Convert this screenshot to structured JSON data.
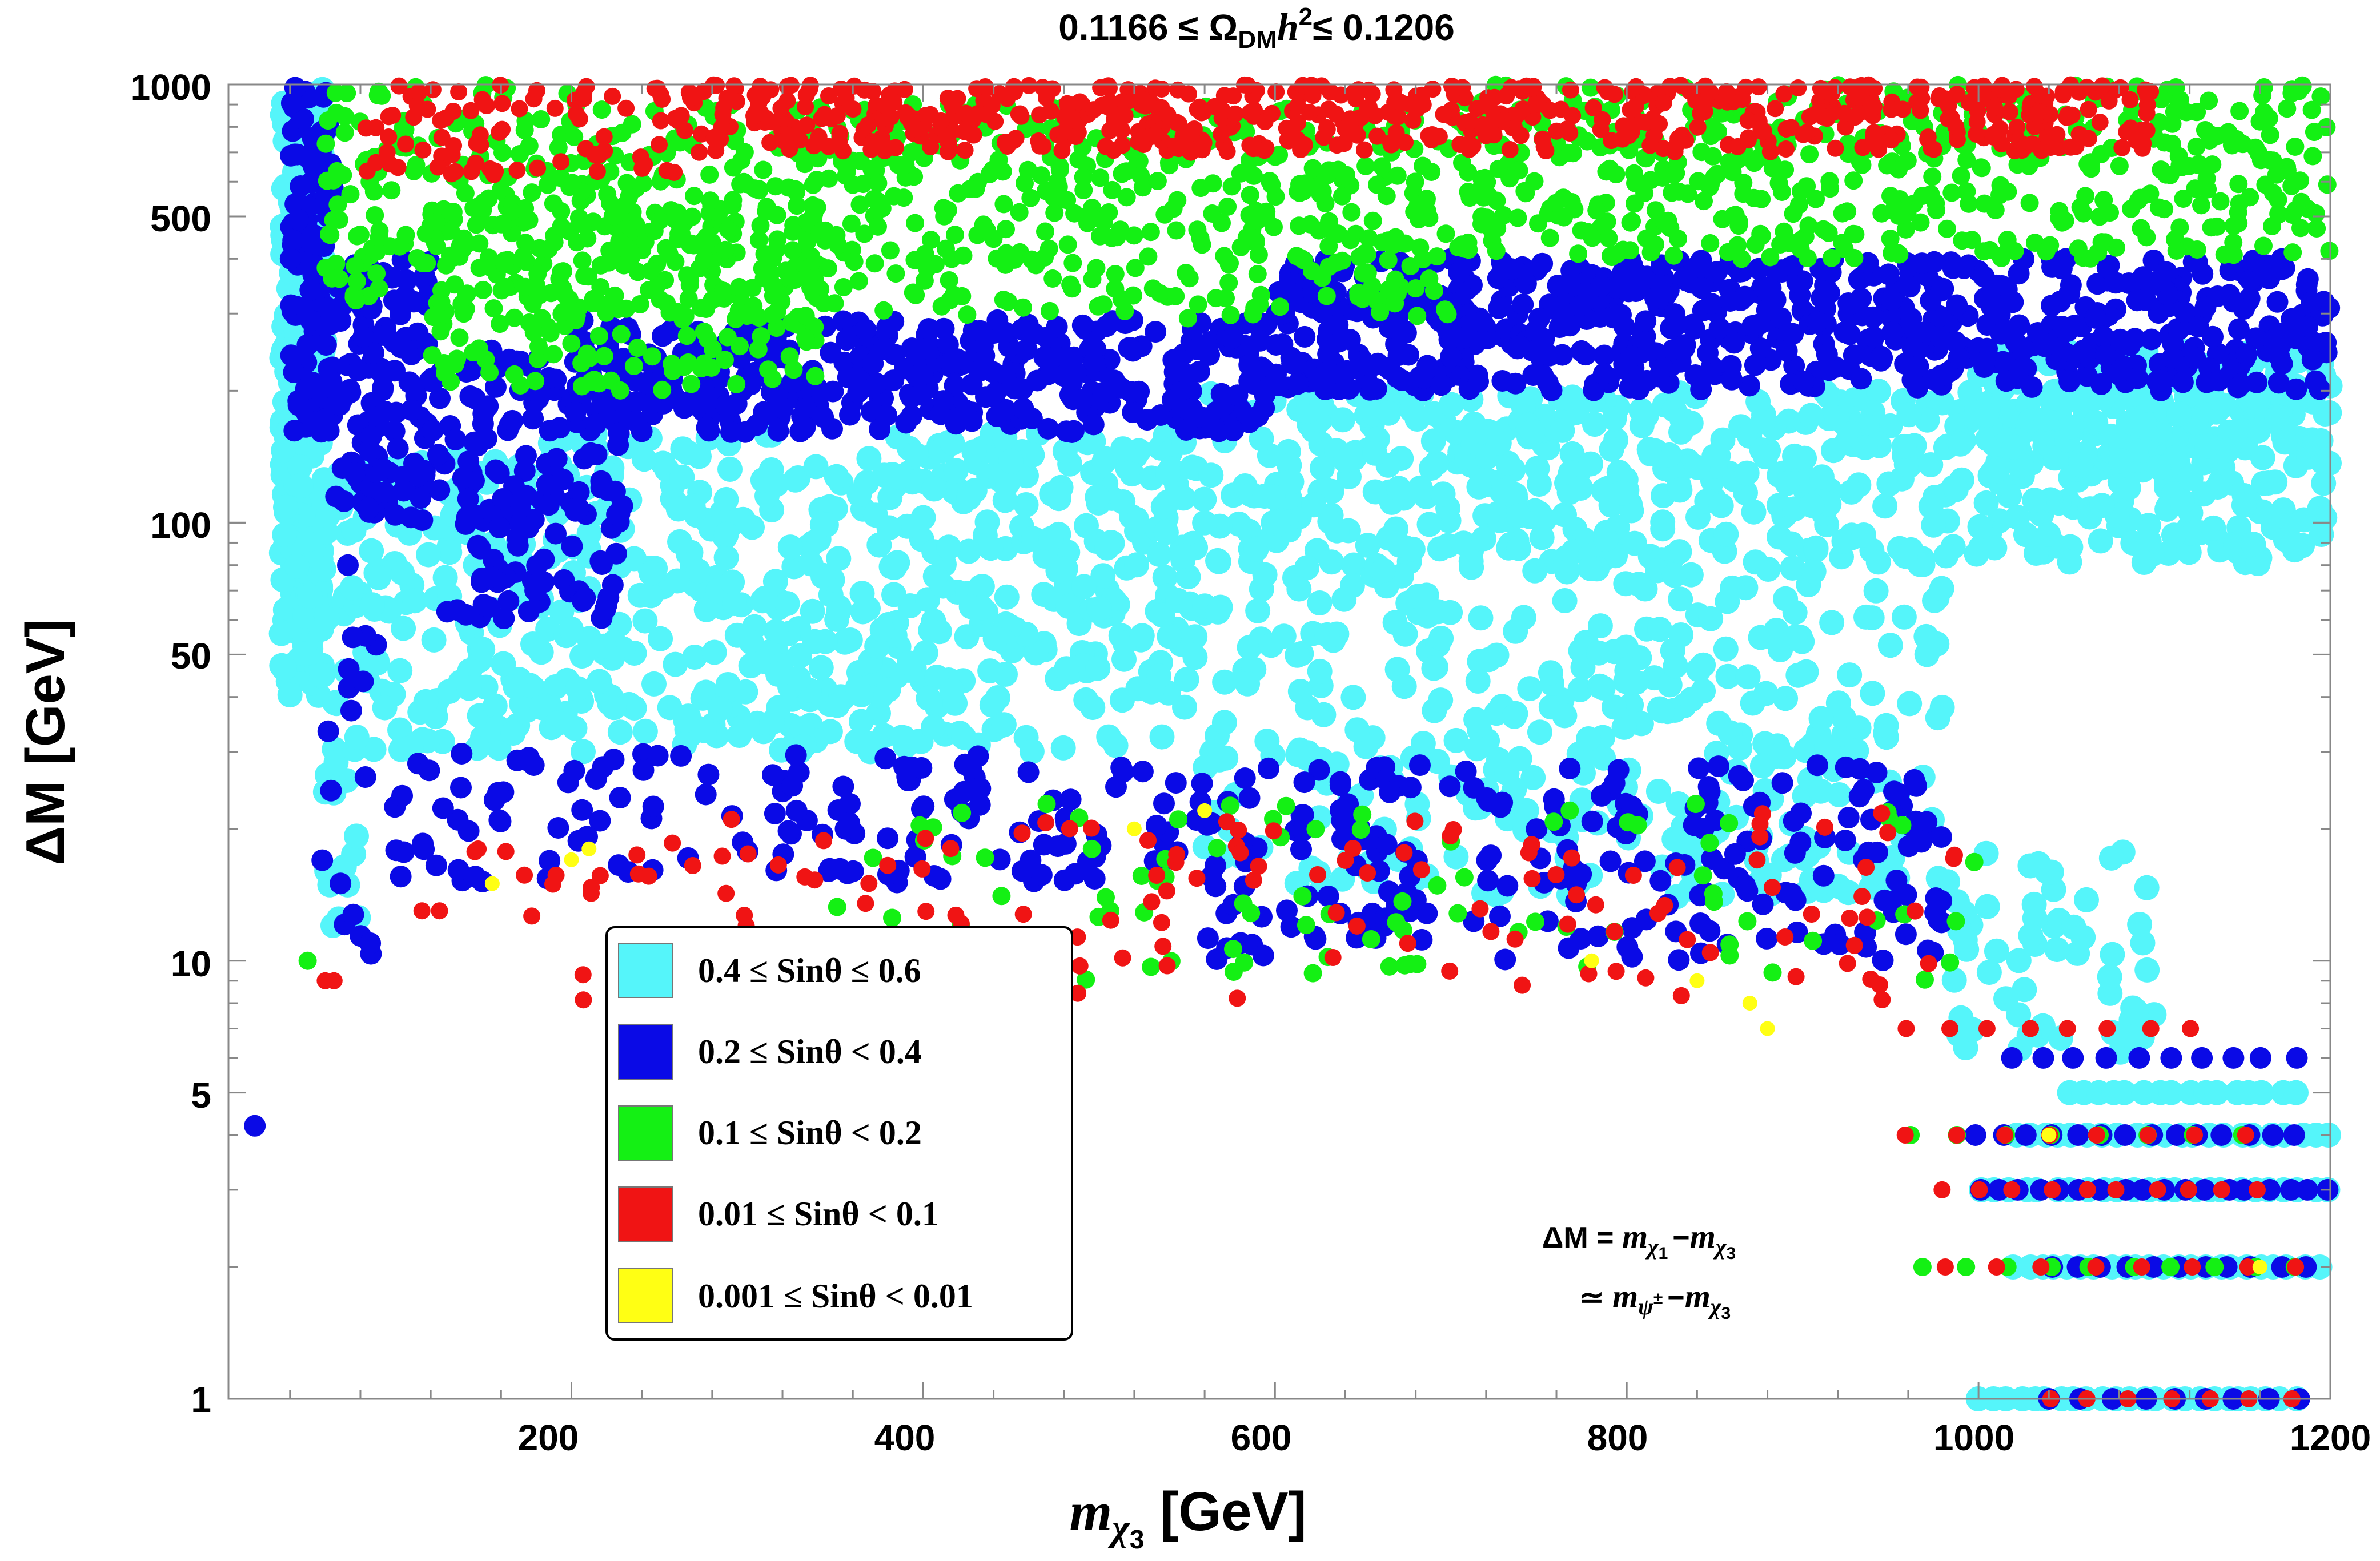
{
  "chart_data": {
    "type": "scatter",
    "title": {
      "prefix": "0.1166 ≤ Ω",
      "sub": "DM",
      "h": "h",
      "sup": "2",
      "suffix": "≤ 0.1206"
    },
    "xlabel": {
      "m": "m",
      "sub": "χ",
      "subsub": "3",
      "unit": "[GeV]"
    },
    "ylabel": "ΔM [GeV]",
    "xlim": [
      5,
      1200
    ],
    "ylim": [
      1,
      1000
    ],
    "yscale": "log",
    "x_ticks": [
      "200",
      "400",
      "600",
      "800",
      "1000",
      "1200"
    ],
    "y_ticks": [
      "1",
      "5",
      "10",
      "50",
      "100",
      "500",
      "1000"
    ],
    "legend": {
      "position": "lower-left",
      "entries": [
        {
          "label": "0.4 ≤ Sinθ ≤ 0.6",
          "color": "#55F5FA"
        },
        {
          "label": "0.2 ≤ Sinθ < 0.4",
          "color": "#0A0AE6"
        },
        {
          "label": "0.1 ≤ Sinθ < 0.2",
          "color": "#14F014"
        },
        {
          "label": "0.01 ≤ Sinθ < 0.1",
          "color": "#F01414"
        },
        {
          "label": "0.001 ≤ Sinθ < 0.01",
          "color": "#FFFF14"
        }
      ]
    },
    "annotation": {
      "line1": {
        "lhs": "ΔM = ",
        "m1": "m",
        "s1": "χ",
        "ss1": "1",
        "minus": "−",
        "m2": "m",
        "s2": "χ",
        "ss2": "3"
      },
      "line2": {
        "lhs": "≃ ",
        "m1": "m",
        "s1": "ψ",
        "ss1": "±",
        "minus": "−",
        "m2": "m",
        "s2": "χ",
        "ss2": "3"
      }
    },
    "series": [
      {
        "name": "0.4 ≤ Sinθ ≤ 0.6",
        "color": "#55F5FA",
        "regions": [
          {
            "x": [
              35,
              60
            ],
            "dm": [
              40,
              1000
            ],
            "n": 260
          },
          {
            "x": [
              60,
              180
            ],
            "dm": [
              30,
              150
            ],
            "n": 150
          },
          {
            "x": [
              180,
              560
            ],
            "dm": [
              30,
              160
            ],
            "n": 520
          },
          {
            "x": [
              560,
              1200
            ],
            "dm": [
              80,
              200
            ],
            "n": 560
          },
          {
            "x": [
              1000,
              1200
            ],
            "dm": [
              130,
              250
            ],
            "n": 180
          },
          {
            "x": [
              560,
              980
            ],
            "dm": [
              14,
              80
            ],
            "n": 360
          },
          {
            "x": [
              980,
              1100
            ],
            "dm": [
              6,
              18
            ],
            "n": 60
          },
          {
            "x": [
              60,
              80
            ],
            "dm": [
              12,
              40
            ],
            "n": 18
          }
        ],
        "rows": [
          {
            "dm": 5,
            "x": [
              1050,
              1180
            ],
            "n": 16
          },
          {
            "dm": 4,
            "x": [
              1020,
              1200
            ],
            "n": 22
          },
          {
            "dm": 3,
            "x": [
              1000,
              1200
            ],
            "n": 24
          },
          {
            "dm": 2,
            "x": [
              1020,
              1200
            ],
            "n": 24
          },
          {
            "dm": 1,
            "x": [
              1000,
              1180
            ],
            "n": 24
          }
        ]
      },
      {
        "name": "0.2 ≤ Sinθ < 0.4",
        "color": "#0A0AE6",
        "regions": [
          {
            "x": [
              40,
              65
            ],
            "dm": [
              150,
              1000
            ],
            "n": 110
          },
          {
            "x": [
              65,
              120
            ],
            "dm": [
              100,
              400
            ],
            "n": 120
          },
          {
            "x": [
              120,
              230
            ],
            "dm": [
              60,
              250
            ],
            "n": 160
          },
          {
            "x": [
              200,
              600
            ],
            "dm": [
              160,
              290
            ],
            "n": 380
          },
          {
            "x": [
              600,
              1200
            ],
            "dm": [
              200,
              400
            ],
            "n": 700
          },
          {
            "x": [
              90,
              560
            ],
            "dm": [
              15,
              30
            ],
            "n": 150
          },
          {
            "x": [
              560,
              980
            ],
            "dm": [
              10,
              28
            ],
            "n": 220
          },
          {
            "x": [
              55,
              90
            ],
            "dm": [
              10,
              90
            ],
            "n": 18
          }
        ],
        "rows": [
          {
            "dm": 6,
            "x": [
              1020,
              1180
            ],
            "n": 10
          },
          {
            "dm": 4,
            "x": [
              1000,
              1180
            ],
            "n": 14
          },
          {
            "dm": 3,
            "x": [
              1000,
              1200
            ],
            "n": 18
          },
          {
            "dm": 2,
            "x": [
              1040,
              1200
            ],
            "n": 12
          },
          {
            "dm": 1,
            "x": [
              1040,
              1200
            ],
            "n": 10
          }
        ],
        "points": [
          [
            20,
            4.2
          ]
        ]
      },
      {
        "name": "0.1 ≤ Sinθ < 0.2",
        "color": "#14F014",
        "regions": [
          {
            "x": [
              60,
              200
            ],
            "dm": [
              320,
              1000
            ],
            "n": 150
          },
          {
            "x": [
              120,
              340
            ],
            "dm": [
              200,
              600
            ],
            "n": 250
          },
          {
            "x": [
              200,
              700
            ],
            "dm": [
              290,
              900
            ],
            "n": 560
          },
          {
            "x": [
              700,
              1200
            ],
            "dm": [
              400,
              1000
            ],
            "n": 500
          },
          {
            "x": [
              350,
              1000
            ],
            "dm": [
              9,
              23
            ],
            "n": 90
          }
        ],
        "rows": [
          {
            "dm": 4,
            "x": [
              960,
              1150
            ],
            "n": 8
          },
          {
            "dm": 2,
            "x": [
              970,
              1180
            ],
            "n": 10
          }
        ],
        "points": [
          [
            50,
            10
          ]
        ]
      },
      {
        "name": "0.01 ≤ Sinθ < 0.1",
        "color": "#F01414",
        "regions": [
          {
            "x": [
              80,
              260
            ],
            "dm": [
              620,
              1000
            ],
            "n": 80
          },
          {
            "x": [
              260,
              1100
            ],
            "dm": [
              700,
              1000
            ],
            "n": 620
          },
          {
            "x": [
              140,
              1000
            ],
            "dm": [
              8,
              22
            ],
            "n": 150
          }
        ],
        "rows": [
          {
            "dm": 7,
            "x": [
              960,
              1120
            ],
            "n": 8
          },
          {
            "dm": 4,
            "x": [
              960,
              1150
            ],
            "n": 8
          },
          {
            "dm": 3,
            "x": [
              980,
              1160
            ],
            "n": 10
          },
          {
            "dm": 2,
            "x": [
              980,
              1180
            ],
            "n": 8
          },
          {
            "dm": 1,
            "x": [
              1040,
              1200
            ],
            "n": 8
          }
        ],
        "points": [
          [
            60,
            9
          ],
          [
            65,
            9
          ],
          [
            115,
            13
          ],
          [
            125,
            13
          ]
        ]
      },
      {
        "name": "0.001 ≤ Sinθ < 0.01",
        "color": "#FFFF14",
        "regions": [],
        "rows": [],
        "points": [
          [
            155,
            15
          ],
          [
            200,
            17
          ],
          [
            210,
            18
          ],
          [
            520,
            20
          ],
          [
            560,
            22
          ],
          [
            780,
            10
          ],
          [
            840,
            9
          ],
          [
            870,
            8
          ],
          [
            880,
            7
          ],
          [
            1040,
            4
          ],
          [
            1160,
            2
          ]
        ]
      }
    ]
  }
}
